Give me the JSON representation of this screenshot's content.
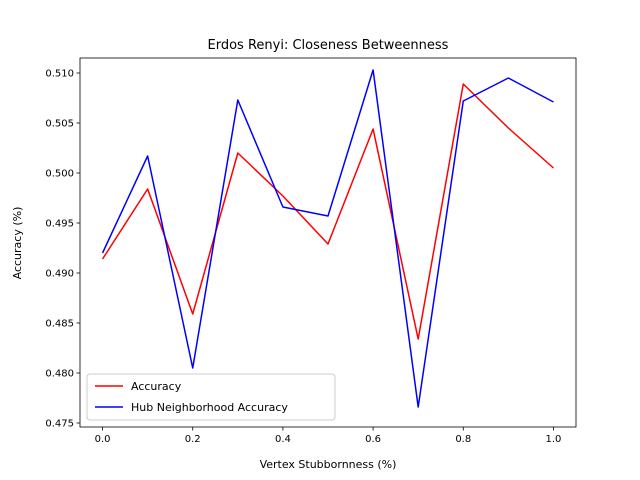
{
  "chart_data": {
    "type": "line",
    "title": "Erdos Renyi: Closeness Betweenness",
    "xlabel": "Vertex Stubbornness (%)",
    "ylabel": "Accuracy (%)",
    "x": [
      0.0,
      0.1,
      0.2,
      0.3,
      0.4,
      0.5,
      0.6,
      0.7,
      0.8,
      0.9,
      1.0
    ],
    "xlim": [
      -0.05,
      1.05
    ],
    "ylim": [
      0.4746,
      0.5115
    ],
    "xticks": [
      "0.0",
      "0.2",
      "0.4",
      "0.6",
      "0.8",
      "1.0"
    ],
    "yticks": [
      "0.475",
      "0.480",
      "0.485",
      "0.490",
      "0.495",
      "0.500",
      "0.505",
      "0.510"
    ],
    "grid": false,
    "legend_position": "lower-left",
    "series": [
      {
        "name": "Accuracy",
        "color": "#ff0000",
        "values": [
          0.4914,
          0.4984,
          0.4859,
          0.502,
          0.4977,
          0.4929,
          0.5044,
          0.4834,
          0.5089,
          0.5045,
          0.5005
        ]
      },
      {
        "name": "Hub Neighborhood Accuracy",
        "color": "#0000ff",
        "values": [
          0.492,
          0.5017,
          0.4805,
          0.5073,
          0.4966,
          0.4957,
          0.5103,
          0.4766,
          0.5072,
          0.5095,
          0.5071
        ]
      }
    ]
  }
}
